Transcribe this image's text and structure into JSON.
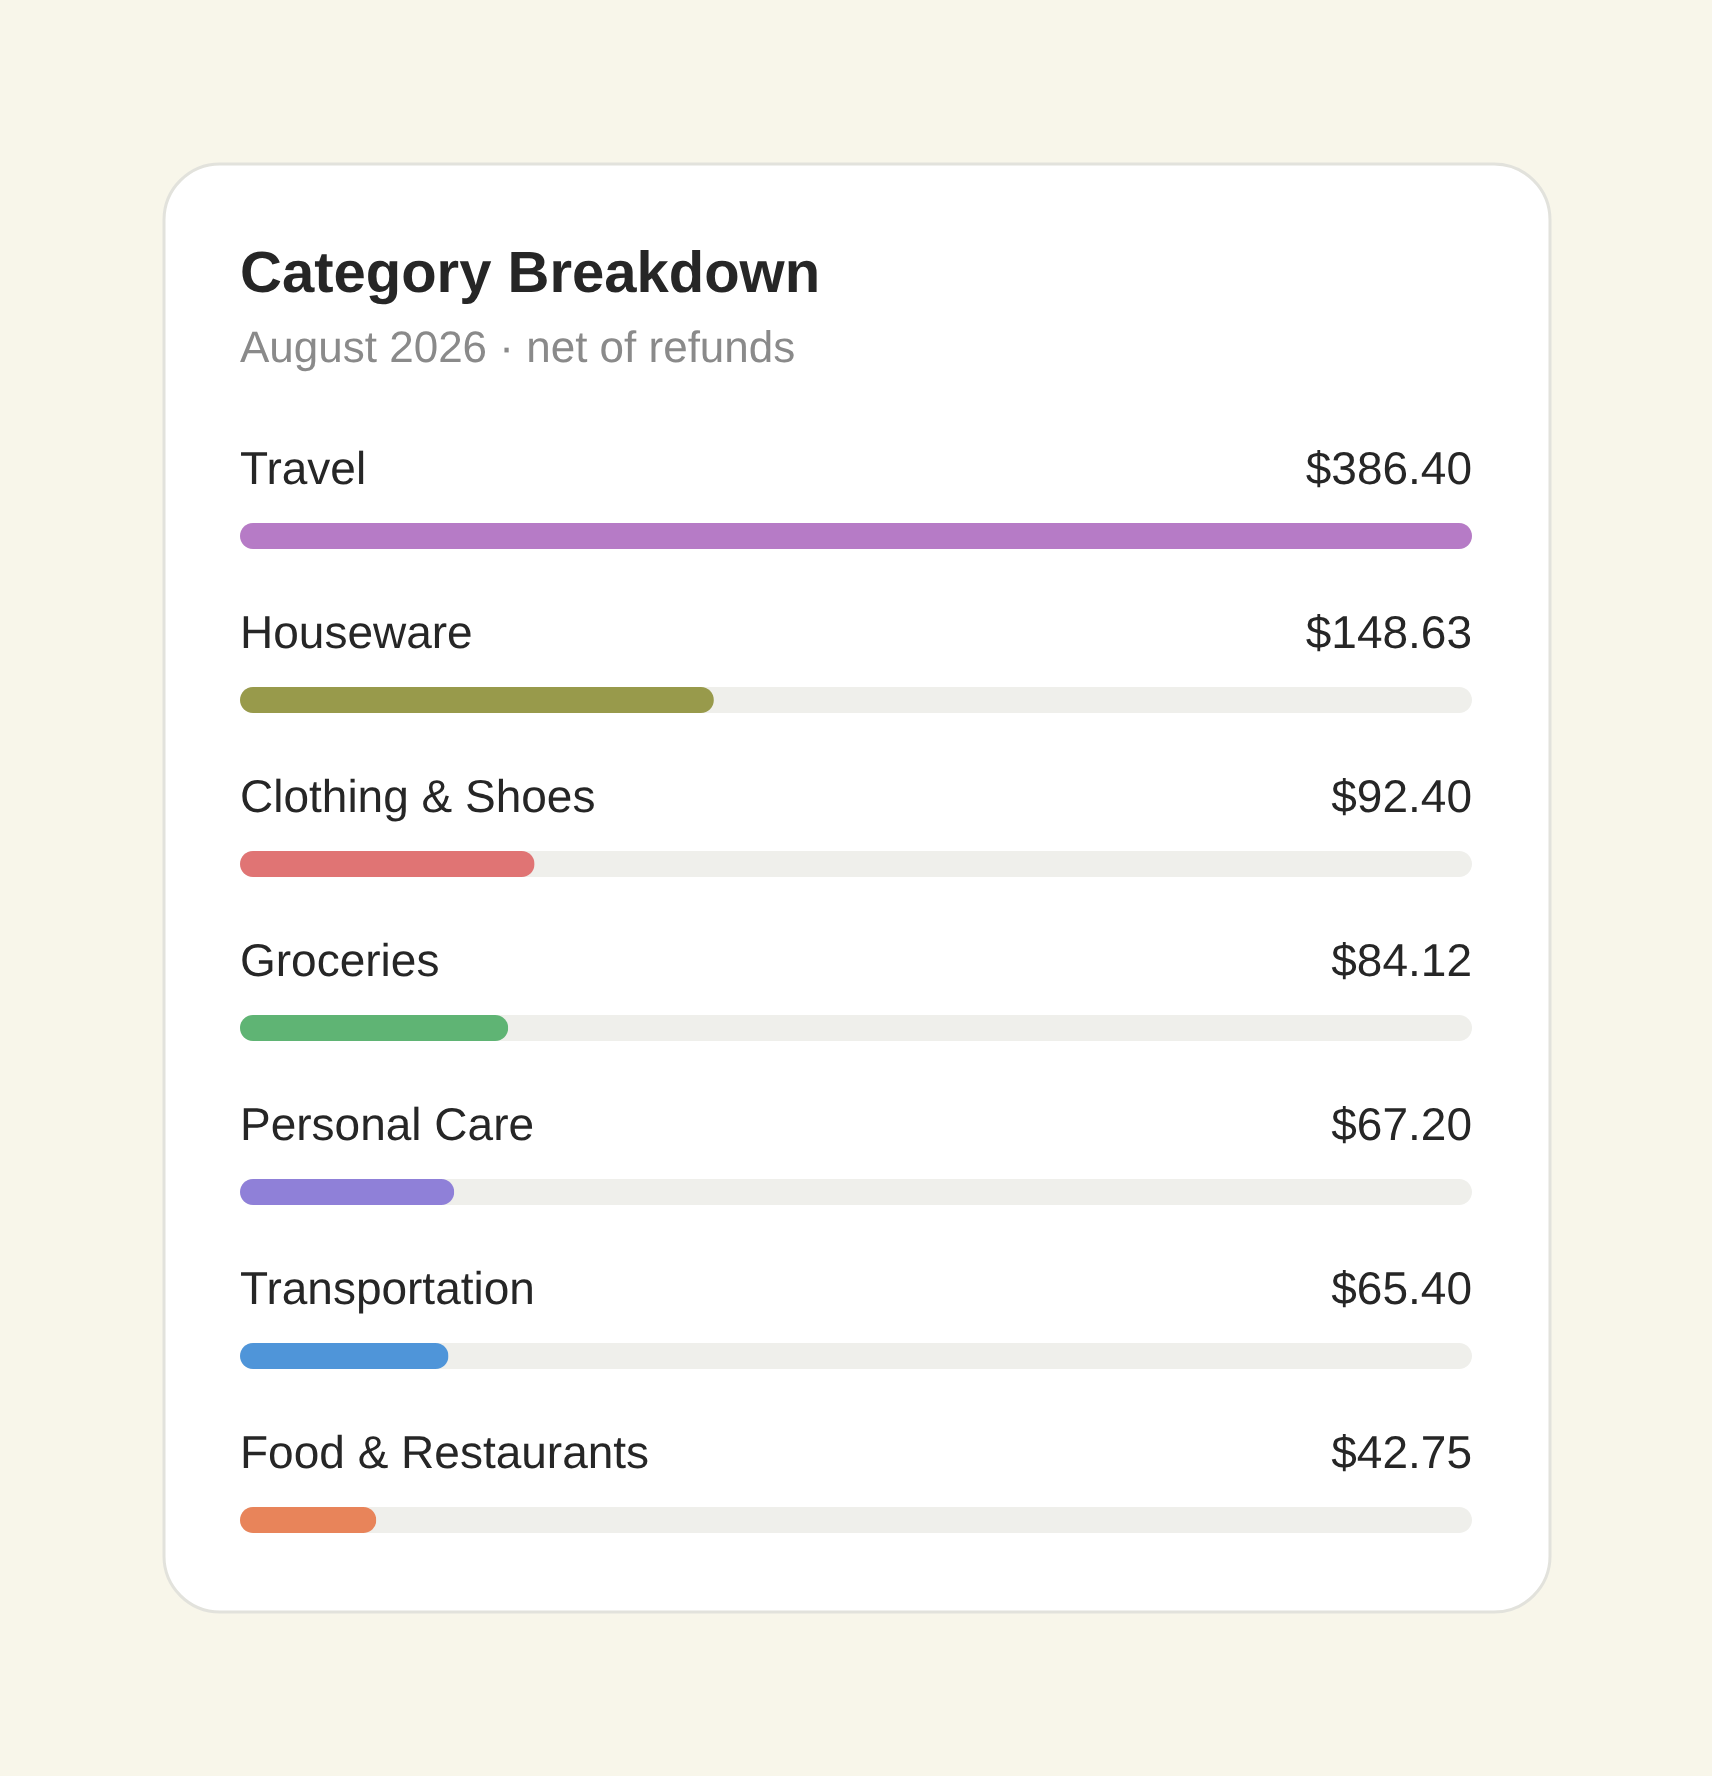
{
  "chart_data": {
    "type": "bar",
    "orientation": "horizontal",
    "title": "Category Breakdown",
    "subtitle": "August 2026 · net of refunds",
    "categories": [
      "Travel",
      "Houseware",
      "Clothing & Shoes",
      "Groceries",
      "Personal Care",
      "Transportation",
      "Food & Restaurants"
    ],
    "values": [
      386.4,
      148.63,
      92.4,
      84.12,
      67.2,
      65.4,
      42.75
    ],
    "value_labels": [
      "$386.40",
      "$148.63",
      "$92.40",
      "$84.12",
      "$67.20",
      "$65.40",
      "$42.75"
    ],
    "colors": [
      "#b67bc6",
      "#989a4b",
      "#e07474",
      "#5fb474",
      "#8f80d8",
      "#4f95d9",
      "#e8845a"
    ]
  }
}
